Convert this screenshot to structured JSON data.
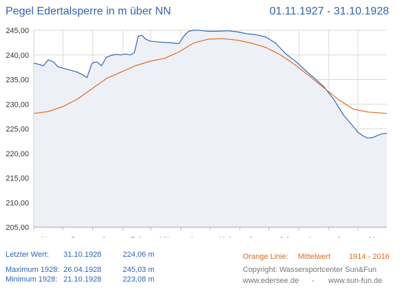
{
  "header": {
    "title": "Pegel Edertalsperre in m über NN",
    "date_range": "01.11.1927 - 31.10.1928"
  },
  "chart_data": {
    "type": "line",
    "ylim": [
      205,
      245
    ],
    "yticks": [
      "205,00",
      "210,00",
      "215,00",
      "220,00",
      "225,00",
      "230,00",
      "235,00",
      "240,00",
      "245,00"
    ],
    "months": [
      "Nov",
      "Dez",
      "Jan",
      "Feb",
      "Mär",
      "Apr",
      "Mai",
      "Jun",
      "Jul",
      "Aug",
      "Sep",
      "Okt"
    ],
    "grid": true,
    "series": [
      {
        "name": "1928",
        "color": "#2e66b3",
        "x": [
          0,
          5,
          10,
          15,
          20,
          25,
          30,
          38,
          45,
          50,
          55,
          60,
          62,
          65,
          70,
          75,
          80,
          85,
          90,
          95,
          100,
          104,
          108,
          112,
          115,
          120,
          130,
          140,
          150,
          155,
          160,
          165,
          170,
          175,
          180,
          190,
          200,
          210,
          220,
          230,
          240,
          250,
          260,
          270,
          280,
          290,
          300,
          310,
          320,
          330,
          335,
          340,
          345,
          350,
          355,
          360,
          365
        ],
        "y": [
          238.3,
          238.1,
          237.8,
          239.0,
          238.6,
          237.6,
          237.3,
          236.9,
          236.5,
          236.0,
          235.4,
          238.2,
          238.5,
          238.6,
          237.8,
          239.5,
          239.9,
          240.1,
          240.0,
          240.2,
          240.0,
          240.5,
          243.8,
          244.0,
          243.3,
          242.8,
          242.6,
          242.5,
          242.3,
          243.8,
          244.8,
          245.0,
          245.03,
          244.9,
          244.8,
          244.8,
          244.9,
          244.7,
          244.3,
          244.1,
          243.6,
          242.4,
          240.3,
          238.8,
          237.0,
          235.3,
          233.5,
          231.0,
          227.8,
          225.5,
          224.3,
          223.6,
          223.08,
          223.2,
          223.6,
          224.0,
          224.06
        ],
        "last_value": {
          "label": "Letzter Wert:",
          "date": "31.10.1928",
          "value": "224,06 m"
        },
        "maximum": {
          "label": "Maximum 1928:",
          "date": "26.04.1928",
          "value": "245,03 m"
        },
        "minimum": {
          "label": "Minimum  1928:",
          "date": "21.10.1928",
          "value": "223,08 m"
        }
      },
      {
        "name": "Mittelwert",
        "color": "#e06a1f",
        "x": [
          0,
          15,
          30,
          45,
          60,
          75,
          90,
          105,
          120,
          135,
          150,
          165,
          180,
          195,
          210,
          225,
          240,
          255,
          270,
          285,
          300,
          315,
          330,
          345,
          365
        ],
        "y": [
          228.1,
          228.5,
          229.5,
          231.0,
          233.1,
          235.2,
          236.5,
          237.8,
          238.7,
          239.3,
          240.6,
          242.4,
          243.2,
          243.3,
          243.0,
          242.4,
          241.5,
          240.0,
          238.0,
          235.7,
          233.3,
          230.9,
          229.0,
          228.4,
          228.1
        ]
      }
    ]
  },
  "legend": {
    "orange_label": "Orange Linie:",
    "mean_label": "Mittelwert",
    "mean_range": "1914 - 2016"
  },
  "credits": {
    "copyright": "Copyright: Wassersportcenter Sun&Fun",
    "site1": "www.edersee.de",
    "separator": "-",
    "site2": "www.sun-fun.de"
  }
}
